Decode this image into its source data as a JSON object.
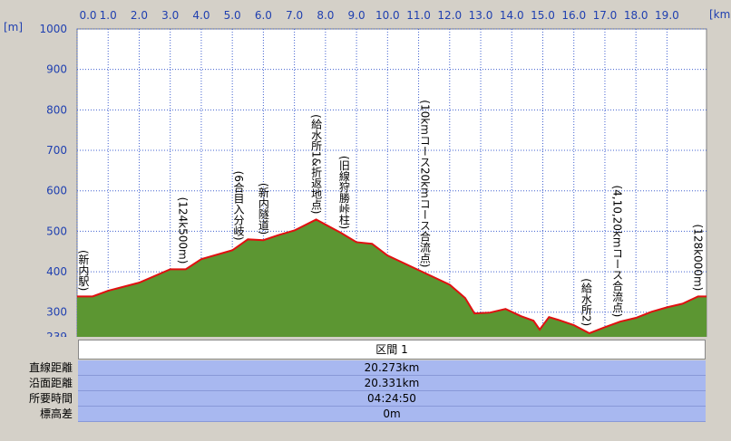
{
  "chart_data": {
    "type": "area",
    "x_unit": "[km]",
    "y_unit": "[m]",
    "xlim": [
      0,
      20.273
    ],
    "xticks": [
      {
        "value": 0,
        "label": "0.0"
      },
      {
        "value": 1,
        "label": "1.0"
      },
      {
        "value": 2,
        "label": "2.0"
      },
      {
        "value": 3,
        "label": "3.0"
      },
      {
        "value": 4,
        "label": "4.0"
      },
      {
        "value": 5,
        "label": "5.0"
      },
      {
        "value": 6,
        "label": "6.0"
      },
      {
        "value": 7,
        "label": "7.0"
      },
      {
        "value": 8,
        "label": "8.0"
      },
      {
        "value": 9,
        "label": "9.0"
      },
      {
        "value": 10,
        "label": "10.0"
      },
      {
        "value": 11,
        "label": "11.0"
      },
      {
        "value": 12,
        "label": "12.0"
      },
      {
        "value": 13,
        "label": "13.0"
      },
      {
        "value": 14,
        "label": "14.0"
      },
      {
        "value": 15,
        "label": "15.0"
      },
      {
        "value": 16,
        "label": "16.0"
      },
      {
        "value": 17,
        "label": "17.0"
      },
      {
        "value": 18,
        "label": "18.0"
      },
      {
        "value": 19,
        "label": "19.0"
      }
    ],
    "ylim": [
      239,
      1000
    ],
    "yticks": [
      239,
      300,
      400,
      500,
      600,
      700,
      800,
      900,
      1000
    ],
    "grid": true,
    "series": [
      {
        "color": "#e01010",
        "fill": "#5c9632",
        "x": [
          0,
          0.5,
          1,
          2,
          3,
          3.5,
          4,
          5,
          5.5,
          6,
          6.5,
          7,
          7.7,
          8.5,
          9,
          9.5,
          10,
          11,
          12,
          12.5,
          12.8,
          13.3,
          13.8,
          14.3,
          14.7,
          14.9,
          15.2,
          15.5,
          16,
          16.5,
          17,
          17.5,
          18,
          18.5,
          19,
          19.5,
          20,
          20.273
        ],
        "values": [
          339,
          339,
          353,
          373,
          406,
          406,
          431,
          453,
          480,
          478,
          491,
          502,
          529,
          496,
          473,
          469,
          440,
          404,
          368,
          335,
          297,
          299,
          308,
          290,
          279,
          257,
          288,
          281,
          268,
          248,
          263,
          277,
          286,
          301,
          312,
          321,
          339,
          339
        ]
      }
    ],
    "annotations": [
      {
        "x": 0.2,
        "text": "(新内駅)"
      },
      {
        "x": 3.4,
        "text": "(124k500m)"
      },
      {
        "x": 5.2,
        "text": "(6合目入分岐)"
      },
      {
        "x": 6.0,
        "text": "(新内隧道)"
      },
      {
        "x": 7.7,
        "text": "(給水所1&折返地点)"
      },
      {
        "x": 8.6,
        "text": "(旧線狩勝峠柱)"
      },
      {
        "x": 11.2,
        "text": "(10kmコース20kmコース合流点)"
      },
      {
        "x": 16.4,
        "text": "(給水所2)"
      },
      {
        "x": 17.4,
        "text": "(4,10,20kmコース合流点)"
      },
      {
        "x": 20.0,
        "text": "(128k000m)"
      }
    ]
  },
  "table": {
    "header": "区間 1",
    "rows": [
      [
        "直線距離",
        "20.273km"
      ],
      [
        "沿面距離",
        "20.331km"
      ],
      [
        "所要時間",
        "04:24:50"
      ],
      [
        "標高差",
        "0m"
      ]
    ]
  }
}
